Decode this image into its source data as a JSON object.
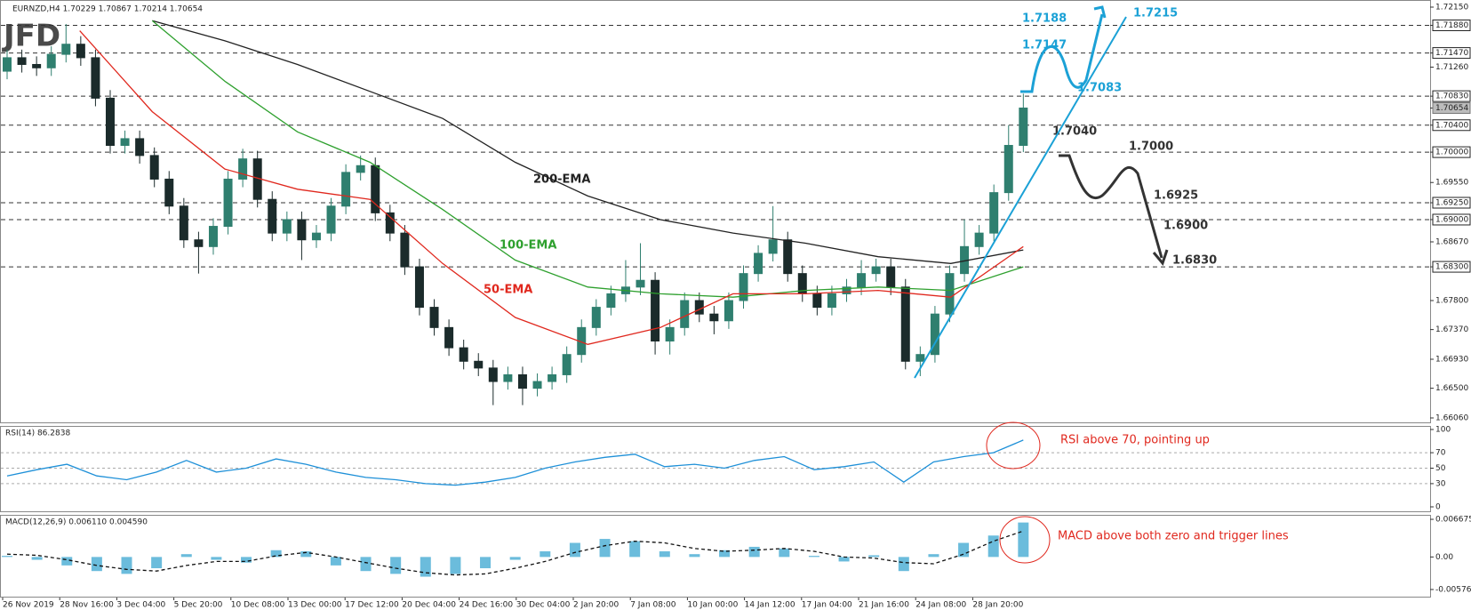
{
  "logo": "JFD",
  "chart_data": [
    {
      "type": "candlestick",
      "title": "EURNZD,H4  1.70229 1.70867 1.70214 1.70654",
      "x_labels": [
        "26 Nov 2019",
        "28 Nov 16:00",
        "3 Dec 04:00",
        "5 Dec 20:00",
        "10 Dec 08:00",
        "13 Dec 00:00",
        "17 Dec 12:00",
        "20 Dec 04:00",
        "24 Dec 16:00",
        "30 Dec 04:00",
        "2 Jan 20:00",
        "7 Jan 08:00",
        "10 Jan 00:00",
        "14 Jan 12:00",
        "17 Jan 04:00",
        "21 Jan 16:00",
        "24 Jan 08:00",
        "28 Jan 20:00"
      ],
      "open": [
        1.712,
        1.714,
        1.713,
        1.7125,
        1.7145,
        1.716,
        1.714,
        1.708,
        1.701,
        1.702,
        1.6995,
        1.696,
        1.692,
        1.687,
        1.686,
        1.689,
        1.696,
        1.699,
        1.693,
        1.688,
        1.69,
        1.687,
        1.688,
        1.692,
        1.697,
        1.698,
        1.691,
        1.688,
        1.683,
        1.677,
        1.674,
        1.671,
        1.669,
        1.668,
        1.666,
        1.667,
        1.665,
        1.666,
        1.667,
        1.67,
        1.674,
        1.677,
        1.679,
        1.68,
        1.681,
        1.672,
        1.674,
        1.678,
        1.676,
        1.675,
        1.678,
        1.682,
        1.685,
        1.687,
        1.682,
        1.679,
        1.677,
        1.679,
        1.68,
        1.682,
        1.683,
        1.68,
        1.669,
        1.67,
        1.676,
        1.682,
        1.686,
        1.688,
        1.694,
        1.701
      ],
      "high": [
        1.7152,
        1.7152,
        1.7142,
        1.7157,
        1.719,
        1.7172,
        1.7152,
        1.7092,
        1.7032,
        1.7032,
        1.7007,
        1.6972,
        1.6932,
        1.6882,
        1.6902,
        1.6972,
        1.7005,
        1.7002,
        1.6942,
        1.6912,
        1.6912,
        1.6892,
        1.6932,
        1.6982,
        1.6995,
        1.6992,
        1.6922,
        1.6892,
        1.6842,
        1.6782,
        1.6752,
        1.6722,
        1.6702,
        1.6692,
        1.6682,
        1.6682,
        1.6672,
        1.6682,
        1.6712,
        1.6752,
        1.6782,
        1.6802,
        1.684,
        1.6865,
        1.6822,
        1.6752,
        1.6792,
        1.6792,
        1.6772,
        1.6792,
        1.6832,
        1.6862,
        1.692,
        1.6882,
        1.6832,
        1.6802,
        1.6802,
        1.6812,
        1.684,
        1.6842,
        1.6842,
        1.6812,
        1.6712,
        1.6772,
        1.6832,
        1.69,
        1.6892,
        1.6952,
        1.704,
        1.70867
      ],
      "low": [
        1.7108,
        1.7118,
        1.7113,
        1.7113,
        1.7133,
        1.7128,
        1.7068,
        1.6998,
        1.6998,
        1.6983,
        1.6948,
        1.6908,
        1.6858,
        1.682,
        1.6848,
        1.6878,
        1.6948,
        1.6918,
        1.6868,
        1.6868,
        1.684,
        1.6858,
        1.6868,
        1.6908,
        1.6958,
        1.6898,
        1.6868,
        1.6818,
        1.6758,
        1.6728,
        1.6698,
        1.6678,
        1.6668,
        1.6625,
        1.6648,
        1.6625,
        1.6638,
        1.6648,
        1.6658,
        1.6688,
        1.6728,
        1.6758,
        1.6778,
        1.6788,
        1.67,
        1.67,
        1.6728,
        1.6748,
        1.673,
        1.6738,
        1.6768,
        1.6808,
        1.6838,
        1.6808,
        1.6778,
        1.6758,
        1.6758,
        1.6778,
        1.6788,
        1.6808,
        1.6788,
        1.6678,
        1.6668,
        1.6688,
        1.6748,
        1.6808,
        1.6848,
        1.6868,
        1.6928,
        1.7
      ],
      "close": [
        1.714,
        1.713,
        1.7125,
        1.7145,
        1.716,
        1.714,
        1.708,
        1.701,
        1.702,
        1.6995,
        1.696,
        1.692,
        1.687,
        1.686,
        1.689,
        1.696,
        1.699,
        1.693,
        1.688,
        1.69,
        1.687,
        1.688,
        1.692,
        1.697,
        1.698,
        1.691,
        1.688,
        1.683,
        1.677,
        1.674,
        1.671,
        1.669,
        1.668,
        1.666,
        1.667,
        1.665,
        1.666,
        1.667,
        1.67,
        1.674,
        1.677,
        1.679,
        1.68,
        1.681,
        1.672,
        1.674,
        1.678,
        1.676,
        1.675,
        1.678,
        1.682,
        1.685,
        1.687,
        1.682,
        1.679,
        1.677,
        1.679,
        1.68,
        1.682,
        1.683,
        1.68,
        1.669,
        1.67,
        1.676,
        1.682,
        1.686,
        1.688,
        1.694,
        1.701,
        1.70654
      ],
      "up_color": "#2f7f6f",
      "down_color": "#1b2b2b",
      "series": [
        {
          "name": "200-EMA",
          "color": "#222222",
          "values": [
            null,
            null,
            1.7195,
            1.7165,
            1.713,
            1.709,
            1.705,
            1.6985,
            1.6935,
            1.69,
            1.688,
            1.6865,
            1.6845,
            1.6835,
            1.6855
          ]
        },
        {
          "name": "100-EMA",
          "color": "#2ea02e",
          "values": [
            null,
            null,
            1.7195,
            1.7105,
            1.703,
            1.6985,
            1.6915,
            1.684,
            1.68,
            1.679,
            1.6785,
            1.6795,
            1.68,
            1.6795,
            1.683
          ]
        },
        {
          "name": "50-EMA",
          "color": "#e0281e",
          "values": [
            null,
            1.718,
            1.706,
            1.6975,
            1.6945,
            1.693,
            1.6835,
            1.6755,
            1.6715,
            1.674,
            1.679,
            1.679,
            1.6795,
            1.6785,
            1.686
          ]
        }
      ],
      "ylim": [
        1.6606,
        1.7215
      ],
      "yticks": [
        {
          "value": 1.7215,
          "label": "1.72150"
        },
        {
          "value": 1.7188,
          "label": "1.71880"
        },
        {
          "value": 1.7147,
          "label": "1.71470"
        },
        {
          "value": 1.7126,
          "label": "1.71260"
        },
        {
          "value": 1.7083,
          "label": "1.70830"
        },
        1.70654,
        {
          "value": 1.704,
          "label": "1.70400"
        },
        {
          "value": 1.7,
          "label": "1.70000"
        },
        {
          "value": 1.6955,
          "label": "1.69550"
        },
        {
          "value": 1.6925,
          "label": "1.69250"
        },
        {
          "value": 1.69,
          "label": "1.69000"
        },
        {
          "value": 1.6867,
          "label": "1.68670"
        },
        {
          "value": 1.683,
          "label": "1.68300"
        },
        {
          "value": 1.678,
          "label": "1.67800"
        },
        {
          "value": 1.6737,
          "label": "1.67370"
        },
        {
          "value": 1.6693,
          "label": "1.66930"
        },
        {
          "value": 1.665,
          "label": "1.66500"
        },
        {
          "value": 1.6606,
          "label": "1.66060"
        }
      ],
      "levels": [
        1.7188,
        1.7147,
        1.7083,
        1.704,
        1.7,
        1.6925,
        1.69,
        1.683
      ],
      "annotations": [
        {
          "text": "1.7215",
          "color": "#1ba1d6"
        },
        {
          "text": "1.7188",
          "color": "#1ba1d6"
        },
        {
          "text": "1.7147",
          "color": "#1ba1d6"
        },
        {
          "text": "1.7083",
          "color": "#1ba1d6"
        },
        {
          "text": "1.7040",
          "color": "#333333"
        },
        {
          "text": "1.7000",
          "color": "#333333"
        },
        {
          "text": "1.6925",
          "color": "#333333"
        },
        {
          "text": "1.6900",
          "color": "#333333"
        },
        {
          "text": "1.6830",
          "color": "#333333"
        }
      ]
    },
    {
      "type": "line",
      "title": "RSI(14) 86.2838",
      "color": "#1e90d8",
      "values": [
        40,
        48,
        55,
        40,
        35,
        45,
        60,
        45,
        50,
        62,
        55,
        45,
        38,
        35,
        30,
        28,
        32,
        38,
        50,
        58,
        64,
        68,
        52,
        55,
        50,
        60,
        65,
        48,
        52,
        58,
        32,
        58,
        65,
        70,
        86.2838
      ],
      "ylim": [
        0,
        100
      ],
      "yticks": [
        100,
        70,
        50,
        30,
        0
      ],
      "grid": true,
      "annotation": "RSI above 70, pointing up"
    },
    {
      "type": "macd",
      "title": "MACD(12,26,9) 0.006110 0.004590",
      "color": "#3aa6d0",
      "signal_color": "#111111",
      "values": [
        0.0002,
        -0.0005,
        -0.0015,
        -0.0025,
        -0.003,
        -0.002,
        0.0005,
        -0.0005,
        -0.001,
        0.0012,
        0.001,
        -0.0015,
        -0.0025,
        -0.003,
        -0.0035,
        -0.003,
        -0.002,
        -0.0005,
        0.001,
        0.0025,
        0.0032,
        0.0028,
        0.001,
        0.0005,
        0.0012,
        0.0018,
        0.0015,
        0.0002,
        -0.0008,
        0.0003,
        -0.0025,
        0.0005,
        0.0025,
        0.0038,
        0.00611
      ],
      "signal": [
        0.0005,
        0.0003,
        -0.0005,
        -0.0015,
        -0.0022,
        -0.0025,
        -0.0015,
        -0.0008,
        -0.0008,
        0.0002,
        0.0008,
        0.0,
        -0.001,
        -0.002,
        -0.0028,
        -0.0032,
        -0.003,
        -0.002,
        -0.0008,
        0.0008,
        0.002,
        0.0028,
        0.0025,
        0.0015,
        0.001,
        0.0012,
        0.0015,
        0.001,
        0.0,
        -0.0002,
        -0.001,
        -0.0012,
        0.0005,
        0.0028,
        0.00459
      ],
      "ylim": [
        -0.00704,
        0.00731
      ],
      "yticks": [
        0.006675,
        {
          "value": 0,
          "label": "0.00"
        },
        -0.005768
      ],
      "annotation": "MACD above both zero and trigger lines"
    }
  ]
}
